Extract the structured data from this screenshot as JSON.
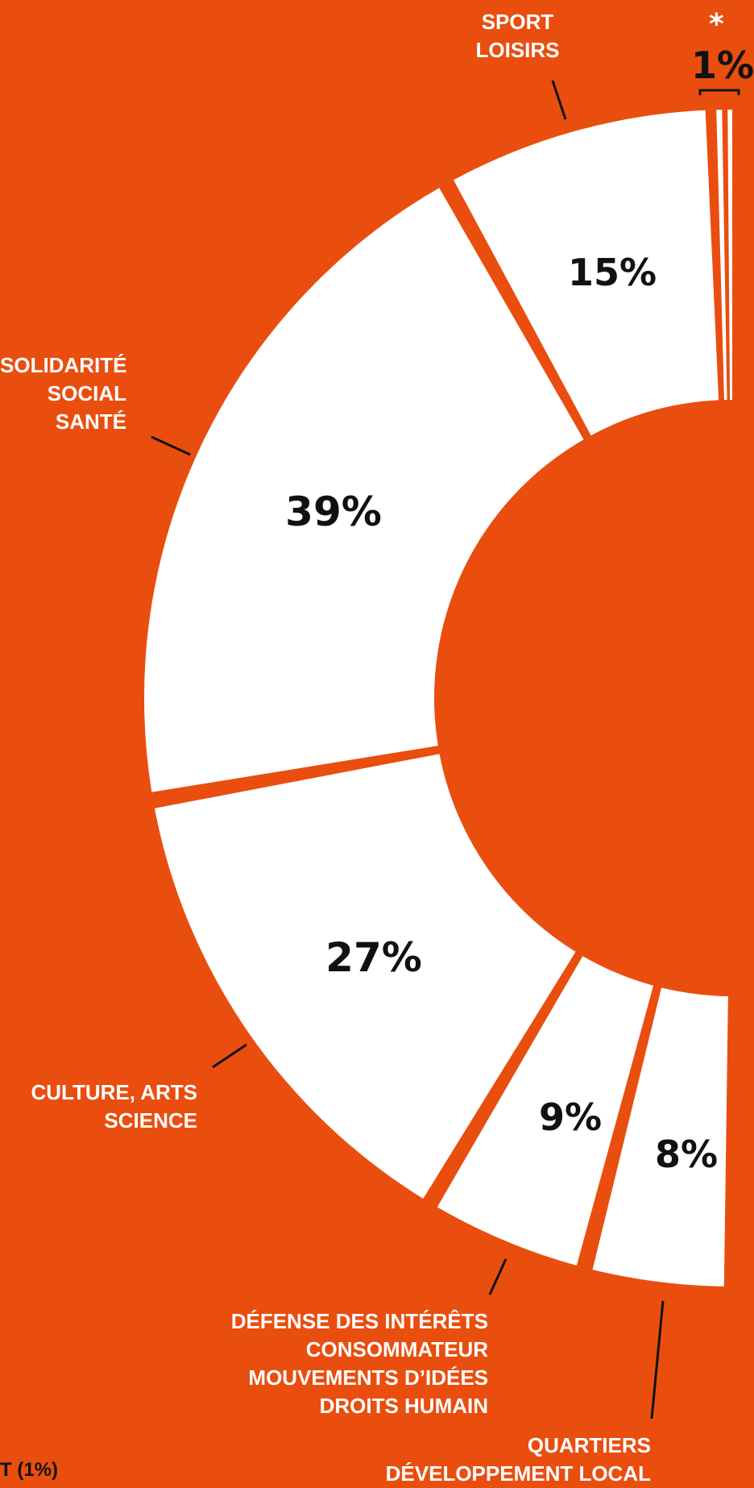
{
  "colors": {
    "background": "#E94E0F",
    "segment": "#FFFFFF",
    "text": "#111111",
    "label": "#FFFFFF"
  },
  "chart_data": {
    "type": "pie",
    "variant": "half-donut",
    "categories": [
      "SPORT LOISIRS",
      "SOLIDARITÉ SOCIAL SANTÉ",
      "CULTURE, ARTS SCIENCE",
      "DÉFENSE DES INTÉRÊTS CONSOMMATEUR MOUVEMENTS D’IDÉES DROITS HUMAIN",
      "QUARTIERS DÉVELOPPEMENT LOCAL",
      "*"
    ],
    "values": [
      15,
      39,
      27,
      9,
      8,
      1
    ],
    "value_labels": [
      "15%",
      "39%",
      "27%",
      "9%",
      "8%",
      "1%"
    ]
  },
  "labels": {
    "sport": [
      "SPORT",
      "LOISIRS"
    ],
    "solidarite": [
      "SOLIDARITÉ",
      "SOCIAL",
      "SANTÉ"
    ],
    "culture": [
      "CULTURE, ARTS",
      "SCIENCE"
    ],
    "defense": [
      "DÉFENSE DES INTÉRÊTS",
      "CONSOMMATEUR",
      "MOUVEMENTS D’IDÉES",
      "DROITS HUMAIN"
    ],
    "quartiers": [
      "QUARTIERS",
      "DÉVELOPPEMENT LOCAL"
    ],
    "small_pct": "1%",
    "asterisk": "*",
    "footnote": "T (1%)"
  }
}
